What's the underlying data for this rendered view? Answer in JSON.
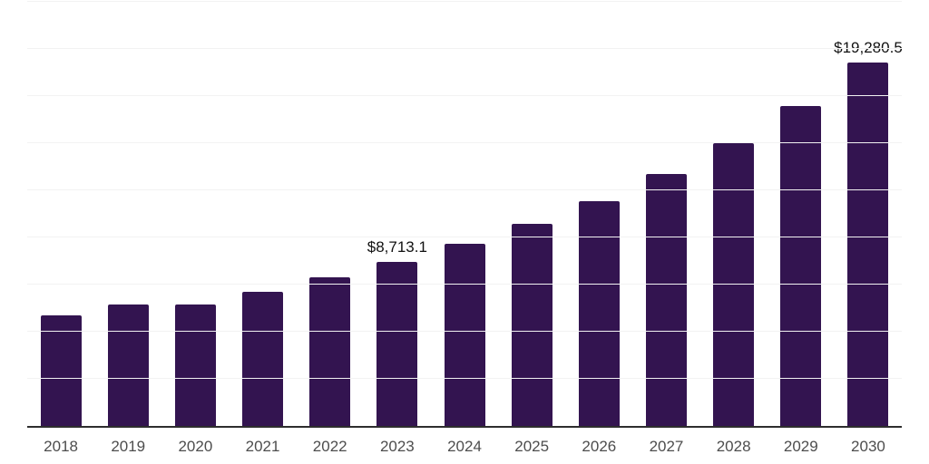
{
  "chart_data": {
    "type": "bar",
    "title": "",
    "xlabel": "",
    "ylabel": "",
    "categories": [
      "2018",
      "2019",
      "2020",
      "2021",
      "2022",
      "2023",
      "2024",
      "2025",
      "2026",
      "2027",
      "2028",
      "2029",
      "2030"
    ],
    "values": [
      5870,
      6450,
      6450,
      7120,
      7890,
      8713.1,
      9660,
      10720,
      11930,
      13370,
      15000,
      16970,
      19280.5
    ],
    "point_labels": [
      "",
      "",
      "",
      "",
      "",
      "$8,713.1",
      "",
      "",
      "",
      "",
      "",
      "",
      "$19,280.5"
    ],
    "ylim": [
      0,
      22500
    ],
    "grid_step": 2500,
    "grid": true,
    "legend_position": "none",
    "colors": {
      "bar": "#331450",
      "gridline": "#f2f2f2",
      "axis_line": "#2e2e2e",
      "tick_label": "#4d4d4d",
      "data_label": "#111111",
      "background": "#ffffff"
    }
  }
}
